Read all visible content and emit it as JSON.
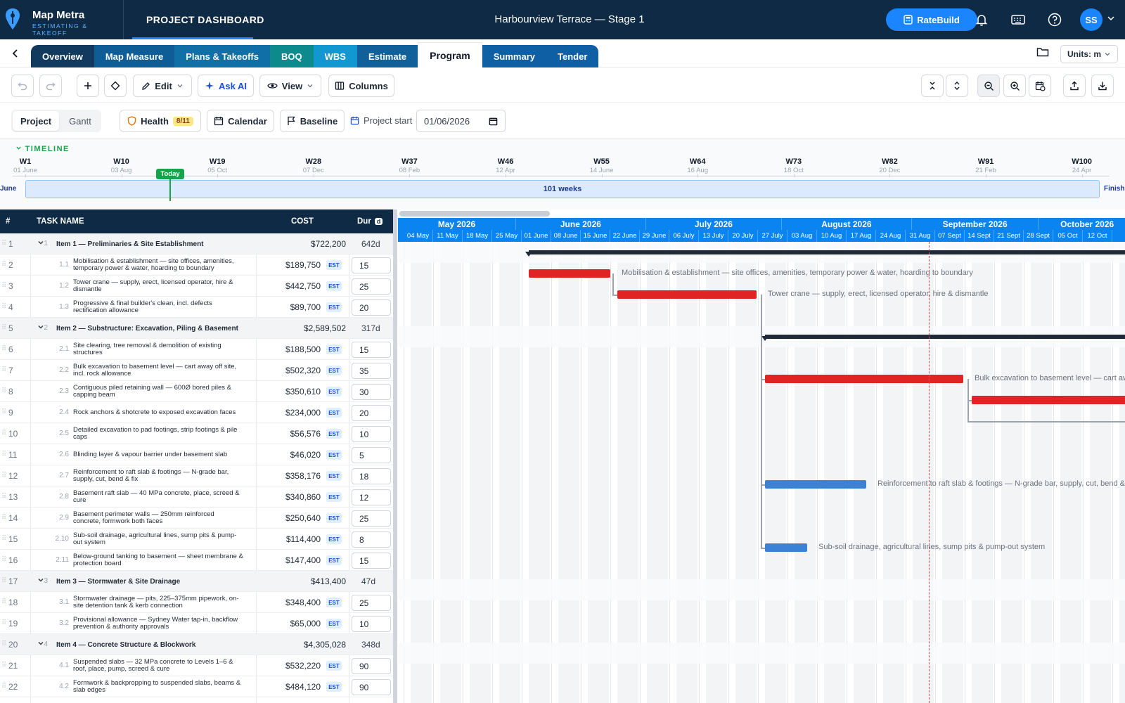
{
  "app": {
    "name": "Map Metra",
    "subtitle": "ESTIMATING & TAKEOFF",
    "section": "PROJECT DASHBOARD"
  },
  "project": {
    "title": "Harbourview Terrace — Stage 1"
  },
  "header": {
    "ratebuild_label": "RateBuild",
    "avatar_initials": "SS"
  },
  "tabs": [
    "Overview",
    "Map Measure",
    "Plans & Takeoffs",
    "BOQ",
    "WBS",
    "Estimate",
    "Program",
    "Summary",
    "Tender"
  ],
  "active_tab": "Program",
  "tab_colors": [
    "#123a5f",
    "#0f5d97",
    "#0f6fa6",
    "#0d8a8c",
    "#1198d1",
    "#12609a",
    "#ffffff",
    "#0f5fa5",
    "#0f5fa5"
  ],
  "units": {
    "label": "Units: m"
  },
  "toolbar": {
    "edit": "Edit",
    "ask_ai": "Ask AI",
    "view": "View",
    "columns": "Columns"
  },
  "toolbar2": {
    "project": "Project",
    "gantt": "Gantt",
    "health": "Health",
    "health_count": "8/11",
    "calendar": "Calendar",
    "baseline": "Baseline",
    "project_start_label": "Project start",
    "project_start_value": "01/06/2026"
  },
  "timeline": {
    "heading": "TIMELINE",
    "weeks": [
      {
        "w": "W1",
        "d": "01 June"
      },
      {
        "w": "W10",
        "d": "03 Aug"
      },
      {
        "w": "W19",
        "d": "05 Oct"
      },
      {
        "w": "W28",
        "d": "07 Dec"
      },
      {
        "w": "W37",
        "d": "08 Feb"
      },
      {
        "w": "W46",
        "d": "12 Apr"
      },
      {
        "w": "W55",
        "d": "14 June"
      },
      {
        "w": "W64",
        "d": "16 Aug"
      },
      {
        "w": "W73",
        "d": "18 Oct"
      },
      {
        "w": "W82",
        "d": "20 Dec"
      },
      {
        "w": "W91",
        "d": "21 Feb"
      },
      {
        "w": "W100",
        "d": "24 Apr"
      }
    ],
    "span_label": "101 weeks",
    "start_label": "June",
    "finish_label": "Finish",
    "today_label": "Today"
  },
  "grid": {
    "headers": {
      "num": "#",
      "name": "TASK NAME",
      "cost": "COST",
      "dur": "Dur",
      "dur_unit": "d"
    },
    "rows": [
      {
        "n": "1",
        "wbs": "1",
        "name": "Item 1 — Preliminaries & Site Establishment",
        "cost": "$722,200",
        "dur": "642d",
        "group": true
      },
      {
        "n": "2",
        "wbs": "1.1",
        "name": "Mobilisation & establishment — site offices, amenities, temporary power & water, hoarding to boundary",
        "cost": "$189,750",
        "dur": "15",
        "est": "EST"
      },
      {
        "n": "3",
        "wbs": "1.2",
        "name": "Tower crane — supply, erect, licensed operator, hire & dismantle",
        "cost": "$442,750",
        "dur": "25",
        "est": "EST"
      },
      {
        "n": "4",
        "wbs": "1.3",
        "name": "Progressive & final builder's clean, incl. defects rectification allowance",
        "cost": "$89,700",
        "dur": "20",
        "est": "EST"
      },
      {
        "n": "5",
        "wbs": "2",
        "name": "Item 2 — Substructure: Excavation, Piling & Basement",
        "cost": "$2,589,502",
        "dur": "317d",
        "group": true
      },
      {
        "n": "6",
        "wbs": "2.1",
        "name": "Site clearing, tree removal & demolition of existing structures",
        "cost": "$188,500",
        "dur": "15",
        "est": "EST"
      },
      {
        "n": "7",
        "wbs": "2.2",
        "name": "Bulk excavation to basement level — cart away off site, incl. rock allowance",
        "cost": "$502,320",
        "dur": "35",
        "est": "EST"
      },
      {
        "n": "8",
        "wbs": "2.3",
        "name": "Contiguous piled retaining wall — 600Ø bored piles & capping beam",
        "cost": "$350,610",
        "dur": "30",
        "est": "EST"
      },
      {
        "n": "9",
        "wbs": "2.4",
        "name": "Rock anchors & shotcrete to exposed excavation faces",
        "cost": "$234,000",
        "dur": "20",
        "est": "EST"
      },
      {
        "n": "10",
        "wbs": "2.5",
        "name": "Detailed excavation to pad footings, strip footings & pile caps",
        "cost": "$56,576",
        "dur": "10",
        "est": "EST"
      },
      {
        "n": "11",
        "wbs": "2.6",
        "name": "Blinding layer & vapour barrier under basement slab",
        "cost": "$46,020",
        "dur": "5",
        "est": "EST"
      },
      {
        "n": "12",
        "wbs": "2.7",
        "name": "Reinforcement to raft slab & footings — N-grade bar, supply, cut, bend & fix",
        "cost": "$358,176",
        "dur": "18",
        "est": "EST"
      },
      {
        "n": "13",
        "wbs": "2.8",
        "name": "Basement raft slab — 40 MPa concrete, place, screed & cure",
        "cost": "$340,860",
        "dur": "12",
        "est": "EST"
      },
      {
        "n": "14",
        "wbs": "2.9",
        "name": "Basement perimeter walls — 250mm reinforced concrete, formwork both faces",
        "cost": "$250,640",
        "dur": "25",
        "est": "EST"
      },
      {
        "n": "15",
        "wbs": "2.10",
        "name": "Sub-soil drainage, agricultural lines, sump pits & pump-out system",
        "cost": "$114,400",
        "dur": "8",
        "est": "EST"
      },
      {
        "n": "16",
        "wbs": "2.11",
        "name": "Below-ground tanking to basement — sheet membrane & protection board",
        "cost": "$147,400",
        "dur": "15",
        "est": "EST"
      },
      {
        "n": "17",
        "wbs": "3",
        "name": "Item 3 — Stormwater & Site Drainage",
        "cost": "$413,400",
        "dur": "47d",
        "group": true
      },
      {
        "n": "18",
        "wbs": "3.1",
        "name": "Stormwater drainage — pits, 225–375mm pipework, on-site detention tank & kerb connection",
        "cost": "$348,400",
        "dur": "25",
        "est": "EST"
      },
      {
        "n": "19",
        "wbs": "3.2",
        "name": "Provisional allowance — Sydney Water tap-in, backflow prevention & authority approvals",
        "cost": "$65,000",
        "dur": "10",
        "est": "EST"
      },
      {
        "n": "20",
        "wbs": "4",
        "name": "Item 4 — Concrete Structure & Blockwork",
        "cost": "$4,305,028",
        "dur": "348d",
        "group": true
      },
      {
        "n": "21",
        "wbs": "4.1",
        "name": "Suspended slabs — 32 MPa concrete to Levels 1–6 & roof, place, pump, screed & cure",
        "cost": "$532,220",
        "dur": "90",
        "est": "EST"
      },
      {
        "n": "22",
        "wbs": "4.2",
        "name": "Formwork & backpropping to suspended slabs, beams & slab edges",
        "cost": "$484,120",
        "dur": "90",
        "est": "EST"
      }
    ]
  },
  "gantt": {
    "months": [
      "May 2026",
      "June 2026",
      "July 2026",
      "August 2026",
      "September 2026",
      "October 2026"
    ],
    "weeks": [
      "04 May",
      "11 May",
      "18 May",
      "25 May",
      "01 June",
      "08 June",
      "15 June",
      "22 June",
      "29 June",
      "06 July",
      "13 July",
      "20 July",
      "27 July",
      "03 Aug",
      "10 Aug",
      "17 Aug",
      "24 Aug",
      "31 Aug",
      "07 Sept",
      "14 Sept",
      "21 Sept",
      "28 Sept",
      "05 Oct",
      "12 Oct"
    ],
    "bar_labels": [
      "Mobilisation & establishment — site offices, amenities, temporary power & water, hoarding to boundary",
      "Tower crane — supply, erect, licensed operator, hire & dismantle",
      "Bulk excavation to basement level — cart away off site, incl. rock allowance",
      "Reinforcement to raft slab & footings — N-grade bar, supply, cut, bend & fix",
      "Sub-soil drainage, agricultural lines, sump pits & pump-out system"
    ],
    "colors": {
      "critical": "#e02424",
      "normal": "#3b82d6",
      "summary": "#1f2937",
      "today": "#e5484d"
    }
  }
}
